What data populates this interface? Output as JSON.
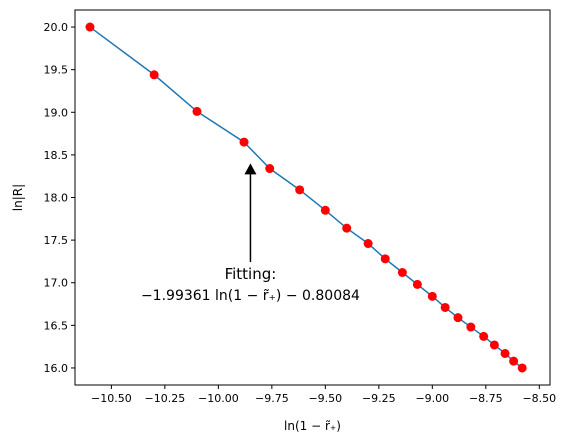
{
  "chart_data": {
    "type": "scatter",
    "xlabel": "ln(1 − r̃₊)",
    "ylabel": "ln|R|",
    "xlim": [
      -10.67,
      -8.45
    ],
    "ylim": [
      15.8,
      20.2
    ],
    "xticks": [
      -10.5,
      -10.25,
      -10.0,
      -9.75,
      -9.5,
      -9.25,
      -9.0,
      -8.75,
      -8.5
    ],
    "yticks": [
      16.0,
      16.5,
      17.0,
      17.5,
      18.0,
      18.5,
      19.0,
      19.5,
      20.0
    ],
    "xtick_labels": [
      "−10.50",
      "−10.25",
      "−10.00",
      "−9.75",
      "−9.50",
      "−9.25",
      "−9.00",
      "−8.75",
      "−8.50"
    ],
    "ytick_labels": [
      "16.0",
      "16.5",
      "17.0",
      "17.5",
      "18.0",
      "18.5",
      "19.0",
      "19.5",
      "20.0"
    ],
    "grid": false,
    "line_color": "#1f77b4",
    "point_color": "#ff0000",
    "fit": {
      "slope": -1.99361,
      "intercept": -0.80084
    },
    "points": {
      "x": [
        -10.6,
        -10.3,
        -10.1,
        -9.88,
        -9.76,
        -9.62,
        -9.5,
        -9.4,
        -9.3,
        -9.22,
        -9.14,
        -9.07,
        -9.0,
        -8.94,
        -8.88,
        -8.82,
        -8.76,
        -8.71,
        -8.66,
        -8.62,
        -8.58
      ],
      "y": [
        20.0,
        19.44,
        19.01,
        18.65,
        18.34,
        18.09,
        17.85,
        17.64,
        17.46,
        17.28,
        17.12,
        16.98,
        16.84,
        16.71,
        16.59,
        16.48,
        16.37,
        16.27,
        16.17,
        16.08,
        16.0
      ]
    },
    "annotation": {
      "title": "Fitting:",
      "formula": "−1.99361 ln(1 − r̃₊) − 0.80084",
      "arrow_xy": [
        -9.85,
        18.4
      ],
      "text_xy": [
        -9.85,
        17.22
      ]
    }
  }
}
